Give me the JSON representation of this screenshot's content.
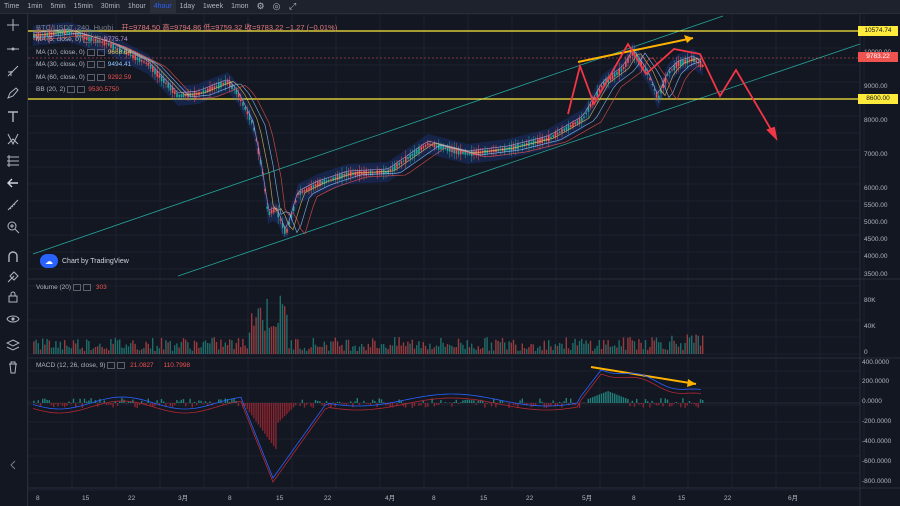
{
  "timeframes": [
    "Time",
    "1min",
    "5min",
    "15min",
    "30min",
    "1hour",
    "4hour",
    "1day",
    "1week",
    "1mon"
  ],
  "active_timeframe": "4hour",
  "header": {
    "symbol": "BTC/USDT, 240, Huobi",
    "ohlc": "开=9784.50  高=9794.86  低=9759.32  收=9783.22  −1.27 (−0.01%)"
  },
  "indicators": [
    {
      "label": "MA (5, close, 0)",
      "value": "9775.74",
      "color": "#c19fd9"
    },
    {
      "label": "MA (10, close, 0)",
      "value": "9668.64",
      "color": "#e2c25f"
    },
    {
      "label": "MA (30, close, 0)",
      "value": "9494.41",
      "color": "#8ec5ff"
    },
    {
      "label": "MA (60, close, 0)",
      "value": "9292.59",
      "color": "#ef5350"
    },
    {
      "label": "BB (20, 2)",
      "value": "9530.5750",
      "color": "#ef5350"
    }
  ],
  "price_axis": [
    "10000.00",
    "9000.00",
    "8000.00",
    "7000.00",
    "6000.00",
    "5500.00",
    "5000.00",
    "4500.00",
    "4000.00",
    "3500.00"
  ],
  "price_tags": {
    "top": "10574.74",
    "current": "9783.22",
    "support": "8600.00"
  },
  "volume_legend": {
    "label": "Volume (20)",
    "value": "303"
  },
  "volume_axis": [
    "80K",
    "40K",
    "0"
  ],
  "macd_legend": {
    "label": "MACD (12, 26, close, 9)",
    "value1": "21.0827",
    "value2": "110.7998"
  },
  "macd_axis": [
    "400.0000",
    "200.0000",
    "0.0000",
    "-200.0000",
    "-400.0000",
    "-600.0000",
    "-800.0000"
  ],
  "date_axis": [
    "8",
    "15",
    "22",
    "3月",
    "8",
    "15",
    "22",
    "4月",
    "8",
    "15",
    "22",
    "5月",
    "8",
    "15",
    "22",
    "6月"
  ],
  "branding": "Chart by TradingView",
  "colors": {
    "up": "#26a69a",
    "down": "#ef5350",
    "yellow": "#ffeb3b",
    "arrow": "#ffb300",
    "channel": "#26a69a",
    "bg": "#131722"
  }
}
